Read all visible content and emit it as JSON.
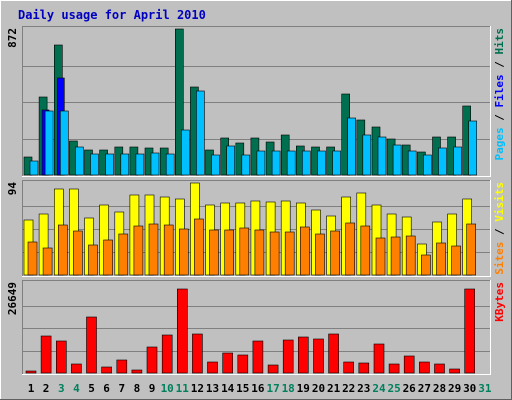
{
  "chart_data": {
    "title": "Daily usage for April 2010",
    "type": "bar",
    "x": [
      "1",
      "2",
      "3",
      "4",
      "5",
      "6",
      "7",
      "8",
      "9",
      "10",
      "11",
      "12",
      "13",
      "14",
      "15",
      "16",
      "17",
      "18",
      "19",
      "20",
      "21",
      "22",
      "23",
      "24",
      "25",
      "26",
      "27",
      "28",
      "29",
      "30",
      "31"
    ],
    "weekend_days": [
      "3",
      "4",
      "10",
      "11",
      "17",
      "18",
      "24",
      "25",
      "31"
    ],
    "colors": {
      "background": "#c0c0c0",
      "hits": "#006f4f",
      "files": "#0000ff",
      "pages": "#00c0ff",
      "visits": "#ffff00",
      "sites": "#ff8000",
      "kbytes": "#ff0000",
      "title": "#0000c0",
      "weekday_label": "#000000",
      "weekend_label": "#00805c",
      "gridline": "#808080"
    },
    "panels": [
      {
        "name": "hits-files-pages",
        "max_label": "872",
        "ymax": 872,
        "legend_segments": [
          {
            "text": "Pages",
            "color": "#00c0ff"
          },
          {
            "text": " / ",
            "color": "#000000"
          },
          {
            "text": "Files",
            "color": "#0000ff"
          },
          {
            "text": " / ",
            "color": "#000000"
          },
          {
            "text": "Hits",
            "color": "#006f4f"
          }
        ],
        "series": [
          {
            "name": "Hits",
            "values": [
              105,
              465,
              775,
              205,
              150,
              150,
              165,
              165,
              160,
              160,
              870,
              525,
              150,
              220,
              190,
              220,
              195,
              240,
              175,
              165,
              165,
              485,
              330,
              285,
              215,
              180,
              140,
              225,
              225,
              410,
              0
            ]
          },
          {
            "name": "Files",
            "values": [
              0,
              390,
              580,
              0,
              0,
              0,
              0,
              0,
              0,
              0,
              0,
              0,
              0,
              0,
              0,
              0,
              0,
              0,
              0,
              0,
              0,
              0,
              0,
              0,
              0,
              0,
              0,
              0,
              0,
              0,
              0
            ]
          },
          {
            "name": "Pages",
            "values": [
              85,
              380,
              380,
              165,
              125,
              125,
              125,
              125,
              130,
              125,
              270,
              500,
              120,
              175,
              120,
              145,
              145,
              145,
              145,
              145,
              145,
              340,
              240,
              225,
              180,
              145,
              120,
              160,
              165,
              325,
              0
            ]
          }
        ]
      },
      {
        "name": "visits-sites",
        "max_label": "94",
        "ymax": 94,
        "legend_segments": [
          {
            "text": "Sites",
            "color": "#ff8000"
          },
          {
            "text": " / ",
            "color": "#000000"
          },
          {
            "text": "Visits",
            "color": "#ffff00"
          }
        ],
        "series": [
          {
            "name": "Visits",
            "values": [
              56,
              62,
              88,
              88,
              58,
              72,
              64,
              82,
              82,
              80,
              78,
              94,
              72,
              74,
              74,
              76,
              75,
              76,
              74,
              66,
              60,
              80,
              84,
              72,
              62,
              59,
              32,
              54,
              62,
              78,
              0
            ]
          },
          {
            "name": "Sites",
            "values": [
              34,
              28,
              51,
              45,
              31,
              36,
              42,
              50,
              52,
              51,
              47,
              57,
              46,
              46,
              48,
              46,
              44,
              44,
              49,
              42,
              45,
              53,
              50,
              38,
              39,
              40,
              20,
              33,
              30,
              52,
              0
            ]
          }
        ]
      },
      {
        "name": "kbytes",
        "max_label": "26649",
        "ymax": 26649,
        "legend_segments": [
          {
            "text": "KBytes",
            "color": "#ff0000"
          }
        ],
        "series": [
          {
            "name": "KBytes",
            "values": [
              700,
              11000,
              9600,
              2600,
              16500,
              1900,
              3800,
              900,
              7800,
              11200,
              24800,
              11400,
              3200,
              5900,
              5200,
              9600,
              2400,
              9700,
              10800,
              10200,
              11500,
              3400,
              3000,
              8700,
              2600,
              5100,
              3300,
              2600,
              1300,
              25000,
              0
            ]
          }
        ]
      }
    ]
  }
}
